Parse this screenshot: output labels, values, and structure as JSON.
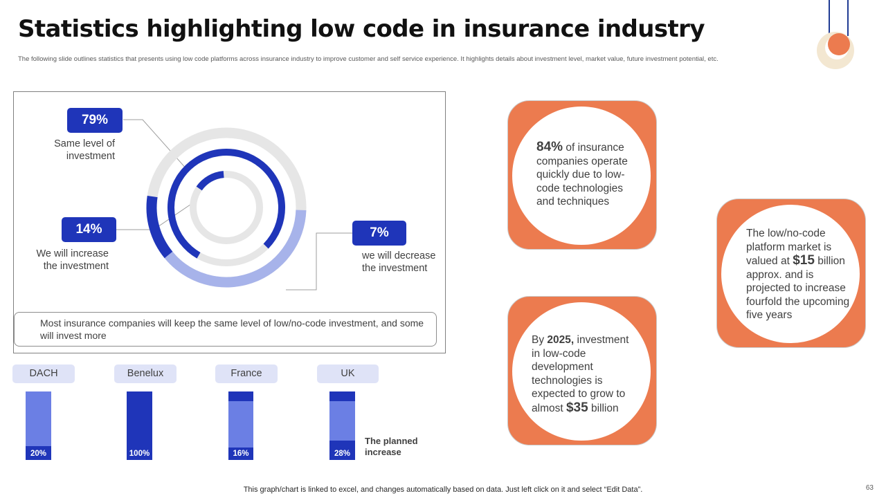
{
  "header": {
    "title": "Statistics highlighting low code in insurance industry",
    "subtitle": "The following slide outlines statistics that presents using low code platforms across insurance industry to improve customer and self service experience. It highlights details about investment level, market value, future investment potential, etc."
  },
  "colors": {
    "accent": "#1f35b9",
    "accent_light": "#6b7fe4",
    "accent_pale": "#a7b3ea",
    "orange": "#ec7b4f",
    "track": "#e6e6e6"
  },
  "chart_data": [
    {
      "type": "pie",
      "subtype": "concentric-donut",
      "segments": [
        {
          "label": "Same level of investment",
          "value": 79
        },
        {
          "label": "We will increase the investment",
          "value": 14
        },
        {
          "label": "we will decrease the investment",
          "value": 7
        }
      ],
      "value_labels": [
        "79%",
        "14%",
        "7%"
      ],
      "label_lines": {
        "same": [
          "Same level of",
          "investment"
        ],
        "increase": [
          "We will increase",
          "the investment"
        ],
        "decrease": [
          "we will decrease",
          "the investment"
        ]
      },
      "note": "Most insurance companies will keep the same level of low/no-code investment, and some will invest more"
    },
    {
      "type": "bar",
      "subtype": "100-percent-stacked",
      "categories": [
        "DACH",
        "Benelux",
        "France",
        "UK"
      ],
      "values": [
        20,
        100,
        16,
        28
      ],
      "value_labels": [
        "20%",
        "100%",
        "16%",
        "28%"
      ],
      "legend": "The planned increase",
      "ylim": [
        0,
        100
      ]
    }
  ],
  "cards": {
    "operate": {
      "value": "84%",
      "text": "of insurance companies operate quickly due to low-code technologies and techniques"
    },
    "growth": {
      "prefix": "By",
      "year": "2025,",
      "text": "investment in low-code development technologies is expected to grow to almost",
      "amount": "$35",
      "suffix": "billion"
    },
    "market": {
      "text": "The low/no-code platform market is valued at",
      "amount": "$15",
      "suffix": "billion approx. and is projected to increase fourfold the upcoming five years"
    }
  },
  "footer": {
    "note": "This graph/chart is linked to excel,  and changes automatically based on data. Just left click on it and select “Edit Data”.",
    "page_number": "63"
  }
}
